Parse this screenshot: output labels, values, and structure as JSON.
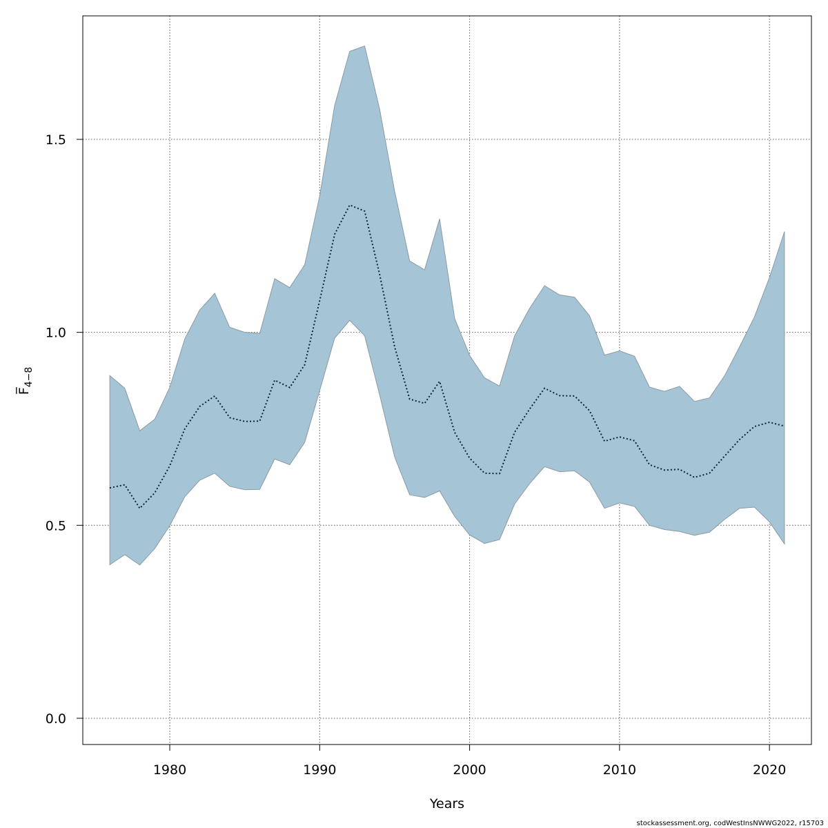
{
  "chart_data": {
    "type": "area",
    "title": "",
    "xlabel": "Years",
    "ylabel": "F̅",
    "ylabel_subscript": "4−8",
    "xlim": [
      1974.2,
      2022.8
    ],
    "ylim": [
      -0.068,
      1.82
    ],
    "x_ticks": [
      1980,
      1990,
      2000,
      2010,
      2020
    ],
    "x_tick_labels": [
      "1980",
      "1990",
      "2000",
      "2010",
      "2020"
    ],
    "y_ticks": [
      0.0,
      0.5,
      1.0,
      1.5
    ],
    "y_tick_labels": [
      "0.0",
      "0.5",
      "1.0",
      "1.5"
    ],
    "grid": true,
    "x": [
      1976,
      1977,
      1978,
      1979,
      1980,
      1981,
      1982,
      1983,
      1984,
      1985,
      1986,
      1987,
      1988,
      1989,
      1990,
      1991,
      1992,
      1993,
      1994,
      1995,
      1996,
      1997,
      1998,
      1999,
      2000,
      2001,
      2002,
      2003,
      2004,
      2005,
      2006,
      2007,
      2008,
      2009,
      2010,
      2011,
      2012,
      2013,
      2014,
      2015,
      2016,
      2017,
      2018,
      2019,
      2020,
      2021
    ],
    "series": [
      {
        "name": "upper",
        "values": [
          0.888,
          0.855,
          0.745,
          0.775,
          0.857,
          0.983,
          1.058,
          1.101,
          1.013,
          1.0,
          0.997,
          1.139,
          1.116,
          1.175,
          1.353,
          1.588,
          1.728,
          1.742,
          1.578,
          1.365,
          1.185,
          1.162,
          1.294,
          1.036,
          0.94,
          0.882,
          0.861,
          0.991,
          1.062,
          1.121,
          1.097,
          1.091,
          1.043,
          0.941,
          0.952,
          0.938,
          0.858,
          0.847,
          0.86,
          0.821,
          0.83,
          0.887,
          0.962,
          1.04,
          1.142,
          1.261
        ]
      },
      {
        "name": "median",
        "values": [
          0.597,
          0.605,
          0.544,
          0.584,
          0.654,
          0.75,
          0.808,
          0.835,
          0.779,
          0.769,
          0.77,
          0.876,
          0.857,
          0.916,
          1.082,
          1.254,
          1.33,
          1.314,
          1.15,
          0.962,
          0.827,
          0.816,
          0.873,
          0.741,
          0.674,
          0.635,
          0.634,
          0.741,
          0.801,
          0.855,
          0.836,
          0.835,
          0.797,
          0.718,
          0.729,
          0.719,
          0.657,
          0.643,
          0.645,
          0.624,
          0.635,
          0.679,
          0.722,
          0.756,
          0.767,
          0.757
        ]
      },
      {
        "name": "lower",
        "values": [
          0.398,
          0.424,
          0.397,
          0.44,
          0.499,
          0.574,
          0.617,
          0.635,
          0.601,
          0.592,
          0.593,
          0.672,
          0.657,
          0.715,
          0.849,
          0.985,
          1.031,
          0.991,
          0.838,
          0.677,
          0.579,
          0.572,
          0.589,
          0.523,
          0.475,
          0.453,
          0.463,
          0.555,
          0.608,
          0.652,
          0.639,
          0.641,
          0.612,
          0.544,
          0.558,
          0.549,
          0.5,
          0.489,
          0.484,
          0.474,
          0.482,
          0.515,
          0.544,
          0.547,
          0.509,
          0.452
        ]
      }
    ],
    "colors": {
      "band_fill": "#a5c4d5",
      "band_stroke": "#8a9aa4",
      "median_line": "#0a2233"
    }
  },
  "footer": {
    "source": "stockassessment.org, codWestInsNWWG2022, r15703"
  }
}
